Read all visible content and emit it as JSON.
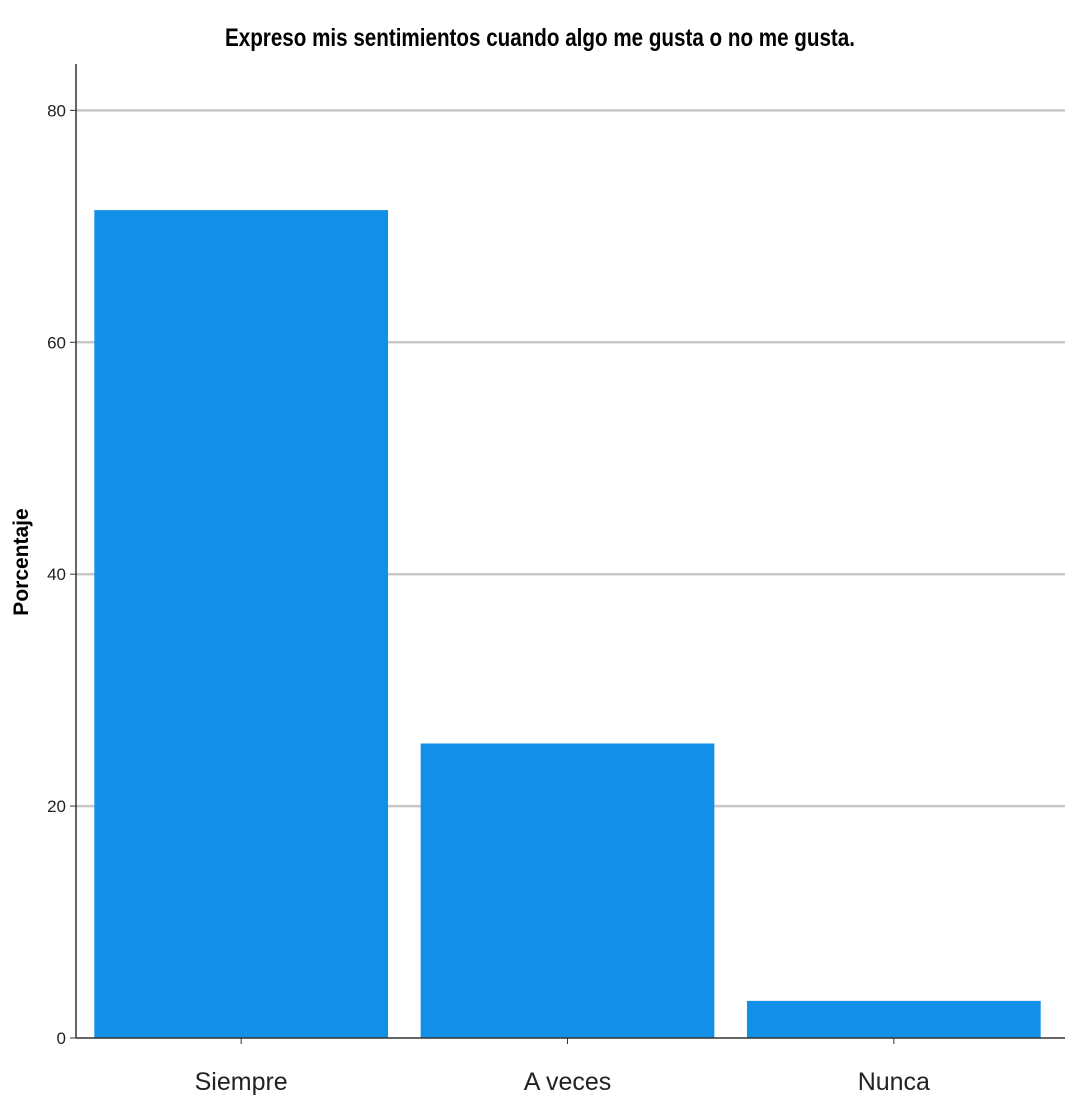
{
  "chart_data": {
    "type": "bar",
    "title": "Expreso mis sentimientos cuando algo me gusta o no me gusta.",
    "xlabel": "",
    "ylabel": "Porcentaje",
    "categories": [
      "Siempre",
      "A veces",
      "Nunca"
    ],
    "values": [
      71.4,
      25.4,
      3.2
    ],
    "ylim": [
      0,
      84
    ],
    "yticks": [
      0,
      20,
      40,
      60,
      80
    ],
    "ytick_labels": [
      "0",
      "20",
      "40",
      "60",
      "80"
    ],
    "grid": true,
    "legend": "none",
    "bar_color": "#1290E8",
    "grid_color": "#C8C8C8",
    "axis_color": "#333333"
  }
}
